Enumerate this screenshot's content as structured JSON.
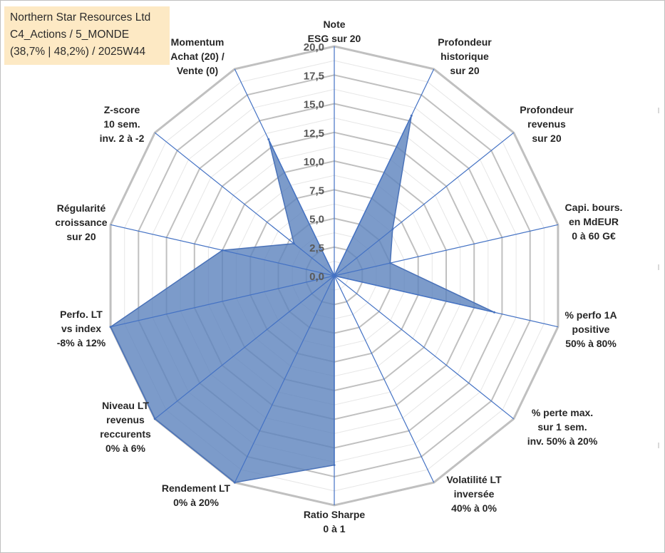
{
  "title_box": {
    "line1": "Northern Star Resources Ltd",
    "line2": "C4_Actions / 5_MONDE",
    "line3": "(38,7% | 48,2%) / 2025W44"
  },
  "colors": {
    "grid": "#c0c0c0",
    "spoke": "#4472c4",
    "fill": "#5b82bd",
    "fill_opacity": "0.8",
    "stroke": "#4a72b8",
    "title_bg": "#fde9c4"
  },
  "chart_data": {
    "type": "radar",
    "range": [
      0,
      20
    ],
    "tick_values": [
      0,
      2.5,
      5,
      7.5,
      10,
      12.5,
      15,
      17.5,
      20
    ],
    "tick_labels": [
      "0,0",
      "2,5",
      "5,0",
      "7,5",
      "10,0",
      "12,5",
      "15,0",
      "17,5",
      "20,0"
    ],
    "axes": [
      {
        "label": [
          "Note",
          "ESG sur 20"
        ],
        "value": 0
      },
      {
        "label": [
          "Profondeur",
          "historique",
          "sur 20"
        ],
        "value": 15.5
      },
      {
        "label": [
          "Profondeur",
          "revenus",
          "sur 20"
        ],
        "value": 6.5
      },
      {
        "label": [
          "Capi. bours.",
          "en MdEUR",
          "0 à 60 G€"
        ],
        "value": 5
      },
      {
        "label": [
          "% perfo 1A",
          "positive",
          "50% à 80%"
        ],
        "value": 14.3
      },
      {
        "label": [
          "% perte max.",
          "sur 1 sem.",
          "inv. 50% à 20%"
        ],
        "value": 0
      },
      {
        "label": [
          "Volatilité LT",
          "inversée",
          "40% à 0%"
        ],
        "value": 0
      },
      {
        "label": [
          "Ratio Sharpe",
          "0 à 1"
        ],
        "value": 16.5
      },
      {
        "label": [
          "Rendement LT",
          "0% à 20%"
        ],
        "value": 20
      },
      {
        "label": [
          "Niveau LT",
          "revenus",
          "reccurents",
          "0% à 6%"
        ],
        "value": 20
      },
      {
        "label": [
          "Perfo. LT",
          "vs index",
          "-8% à 12%"
        ],
        "value": 20
      },
      {
        "label": [
          "Régularité",
          "croissance",
          "sur 20"
        ],
        "value": 10
      },
      {
        "label": [
          "Z-score",
          "10 sem.",
          "inv. 2 à -2"
        ],
        "value": 4.5
      },
      {
        "label": [
          "Momentum",
          "Achat (20) /",
          "Vente (0)"
        ],
        "value": 13.2
      }
    ]
  }
}
